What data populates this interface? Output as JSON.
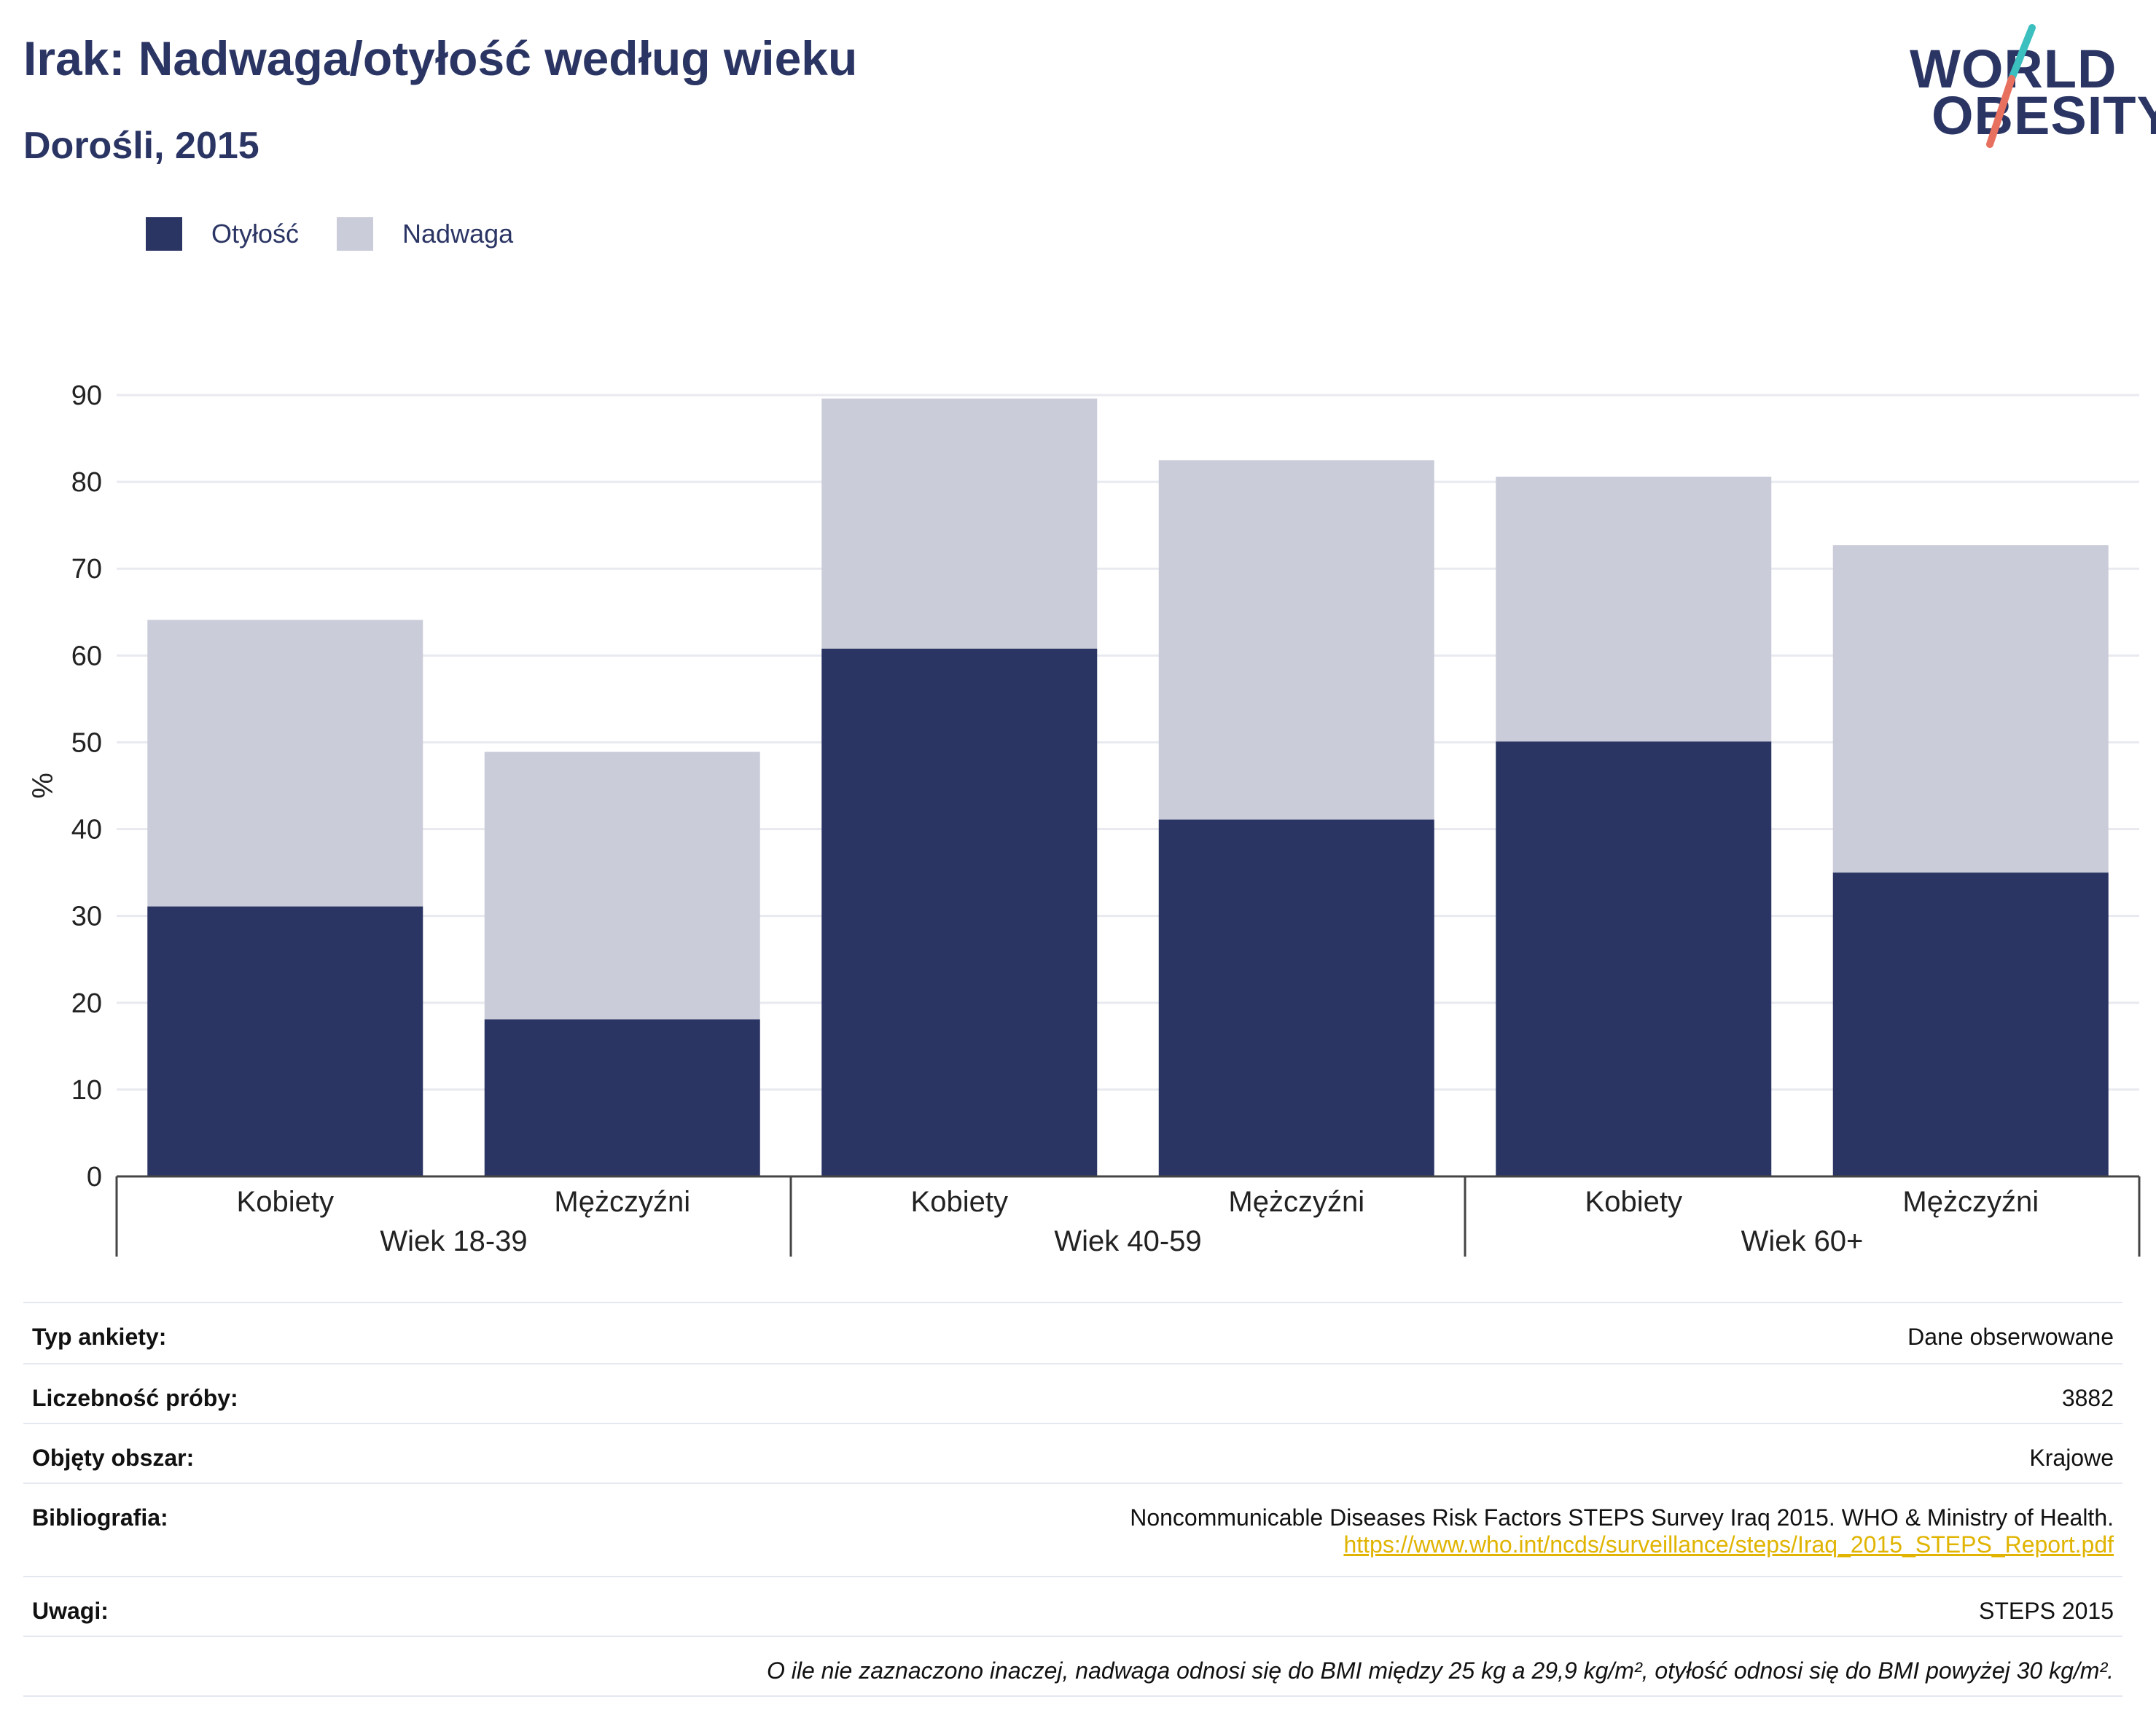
{
  "header": {
    "title": "Irak: Nadwaga/otyłość według wieku",
    "subtitle": "Dorośli, 2015"
  },
  "logo": {
    "line1": "WORLD",
    "line2": "OBESITY"
  },
  "colors": {
    "obesity": "#2b3564",
    "overweight": "#cacdd9",
    "text": "#2b3564",
    "grid": "#e8eaf0",
    "link": "#e0b400",
    "logo_teal": "#3bbfbf",
    "logo_coral": "#e8705f"
  },
  "chart_data": {
    "type": "bar",
    "stacked": true,
    "ylabel": "%",
    "ylim": [
      0,
      90
    ],
    "yticks": [
      0,
      10,
      20,
      30,
      40,
      50,
      60,
      70,
      80,
      90
    ],
    "grid": true,
    "legend_position": "top-left",
    "categories": [
      "Kobiety",
      "Mężczyźni",
      "Kobiety",
      "Mężczyźni",
      "Kobiety",
      "Mężczyźni"
    ],
    "groups": [
      {
        "label": "Wiek 18-39",
        "categories": [
          "Kobiety",
          "Mężczyźni"
        ]
      },
      {
        "label": "Wiek 40-59",
        "categories": [
          "Kobiety",
          "Mężczyźni"
        ]
      },
      {
        "label": "Wiek 60+",
        "categories": [
          "Kobiety",
          "Mężczyźni"
        ]
      }
    ],
    "series": [
      {
        "name": "Otyłość",
        "values": [
          31.1,
          18.1,
          60.8,
          41.1,
          50.1,
          35.0
        ]
      },
      {
        "name": "Nadwaga",
        "values": [
          33.0,
          30.8,
          28.8,
          41.4,
          30.5,
          37.7
        ]
      }
    ]
  },
  "info": {
    "rows": [
      {
        "label": "Typ ankiety:",
        "value": "Dane obserwowane"
      },
      {
        "label": "Liczebność próby:",
        "value": "3882"
      },
      {
        "label": "Objęty obszar:",
        "value": "Krajowe"
      },
      {
        "label": "Bibliografia:",
        "value": "Noncommunicable Diseases Risk Factors STEPS Survey Iraq 2015. WHO & Ministry of Health.",
        "link": "https://www.who.int/ncds/surveillance/steps/Iraq_2015_STEPS_Report.pdf"
      },
      {
        "label": "Uwagi:",
        "value": "STEPS 2015"
      }
    ],
    "note": "O ile nie zaznaczono inaczej, nadwaga odnosi się do BMI między 25 kg a 29,9 kg/m², otyłość odnosi się do BMI powyżej 30 kg/m²."
  }
}
